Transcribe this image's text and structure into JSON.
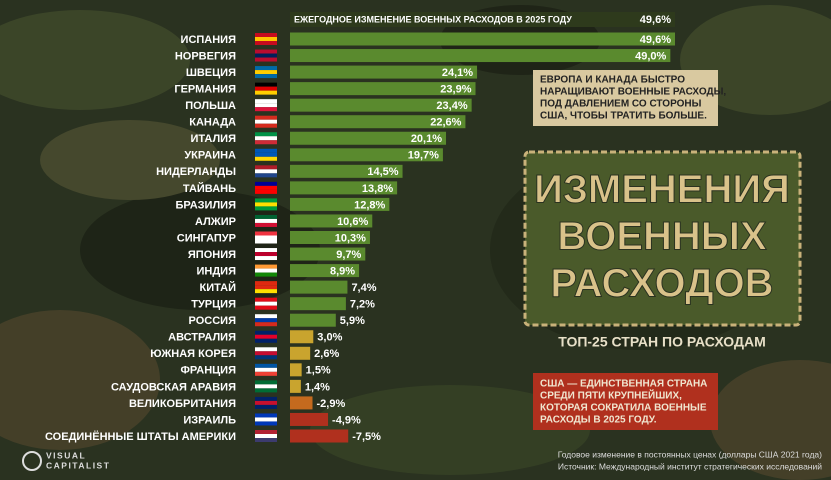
{
  "chart_data": {
    "type": "bar",
    "header": {
      "text": "ЕЖЕГОДНОЕ ИЗМЕНЕНИЕ ВОЕННЫХ РАСХОДОВ В 2025 ГОДУ",
      "value": 49.6,
      "value_label": "49,6%"
    },
    "categories": [
      "ИСПАНИЯ",
      "НОРВЕГИЯ",
      "ШВЕЦИЯ",
      "ГЕРМАНИЯ",
      "ПОЛЬША",
      "КАНАДА",
      "ИТАЛИЯ",
      "УКРАИНА",
      "НИДЕРЛАНДЫ",
      "ТАЙВАНЬ",
      "БРАЗИЛИЯ",
      "АЛЖИР",
      "СИНГАПУР",
      "ЯПОНИЯ",
      "ИНДИЯ",
      "КИТАЙ",
      "ТУРЦИЯ",
      "РОССИЯ",
      "АВСТРАЛИЯ",
      "ЮЖНАЯ КОРЕЯ",
      "ФРАНЦИЯ",
      "САУДОВСКАЯ АРАВИЯ",
      "ВЕЛИКОБРИТАНИЯ",
      "ИЗРАИЛЬ",
      "СОЕДИНЁННЫЕ ШТАТЫ АМЕРИКИ"
    ],
    "values": [
      49.6,
      49.0,
      24.1,
      23.9,
      23.4,
      22.6,
      20.1,
      19.7,
      14.5,
      13.8,
      12.8,
      10.6,
      10.3,
      9.7,
      8.9,
      7.4,
      7.2,
      5.9,
      3.0,
      2.6,
      1.5,
      1.4,
      -2.9,
      -4.9,
      -7.5
    ],
    "value_labels": [
      "49,6%",
      "49,0%",
      "24,1%",
      "23,9%",
      "23,4%",
      "22,6%",
      "20,1%",
      "19,7%",
      "14,5%",
      "13,8%",
      "12,8%",
      "10,6%",
      "10,3%",
      "9,7%",
      "8,9%",
      "7,4%",
      "7,2%",
      "5,9%",
      "3,0%",
      "2,6%",
      "1,5%",
      "1,4%",
      "-2,9%",
      "-4,9%",
      "-7,5%"
    ],
    "colors": [
      "#5a8a2e",
      "#5a8a2e",
      "#5a8a2e",
      "#5a8a2e",
      "#5a8a2e",
      "#5a8a2e",
      "#5a8a2e",
      "#5a8a2e",
      "#5a8a2e",
      "#5a8a2e",
      "#5a8a2e",
      "#5a8a2e",
      "#5a8a2e",
      "#5a8a2e",
      "#5a8a2e",
      "#5a8a2e",
      "#5a8a2e",
      "#5a8a2e",
      "#c9a42e",
      "#c9a42e",
      "#c9a42e",
      "#c9a42e",
      "#c46a1e",
      "#b0301e",
      "#b0301e"
    ],
    "title_lines": [
      "ИЗМЕНЕНИЯ",
      "ВОЕННЫХ",
      "РАСХОДОВ"
    ],
    "subtitle": "ТОП-25 СТРАН ПО РАСХОДАМ",
    "callouts": [
      {
        "lines": [
          "ЕВРОПА И КАНАДА БЫСТРО",
          "НАРАЩИВАЮТ ВОЕННЫЕ РАСХОДЫ,",
          "ПОД ДАВЛЕНИЕМ СО СТОРОНЫ",
          "США, ЧТОБЫ ТРАТИТЬ БОЛЬШЕ."
        ]
      },
      {
        "lines": [
          "США — ЕДИНСТВЕННАЯ СТРАНА",
          "СРЕДИ ПЯТИ КРУПНЕЙШИХ,",
          "КОТОРАЯ СОКРАТИЛА ВОЕННЫЕ",
          "РАСХОДЫ В 2025 ГОДУ."
        ]
      }
    ],
    "notes": [
      "Годовое изменение в постоянных ценах (доллары США 2021 года)",
      "Источник: Международный институт стратегических исследований"
    ],
    "brand": [
      "VISUAL",
      "CAPITALIST"
    ]
  }
}
